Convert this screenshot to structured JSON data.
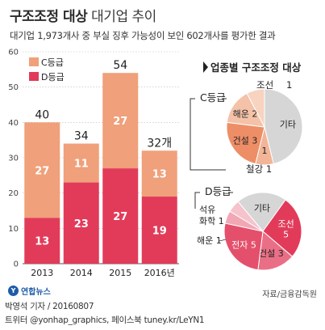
{
  "header": {
    "title_bold": "구조조정 대상",
    "title_rest": "대기업 추이",
    "subtitle": "대기업 1,973개사 중 부실 징후 가능성이 보인 602개사를 평가한 결과"
  },
  "chart_data": [
    {
      "type": "bar",
      "stacked": true,
      "categories": [
        "2013",
        "2014",
        "2015",
        "2016년"
      ],
      "series": [
        {
          "name": "D등급",
          "values": [
            13,
            23,
            27,
            19
          ],
          "color": "#e23b5a"
        },
        {
          "name": "C등급",
          "values": [
            27,
            11,
            27,
            13
          ],
          "color": "#f0a07a"
        }
      ],
      "totals": [
        "40",
        "34",
        "54",
        "32개"
      ],
      "ylim": [
        0,
        60
      ],
      "yticks": [
        0,
        10,
        20,
        30,
        40,
        50,
        60
      ],
      "legend": "top-left",
      "grid": true
    },
    {
      "type": "pie",
      "heading": "업종별 구조조정 대상",
      "label": "C등급",
      "slices": [
        {
          "label": "기타",
          "display": "기타",
          "value": 6,
          "color": "#d6d6d6"
        },
        {
          "label": "조선 1",
          "display": "1",
          "value": 1,
          "color": "#f2b597"
        },
        {
          "label": "건설 3",
          "display": "건설 3",
          "value": 3,
          "color": "#ee8e67"
        },
        {
          "label": "해운 2",
          "display": "해운 2",
          "value": 2,
          "color": "#f4c2a8"
        },
        {
          "label": "철강 1",
          "display": "",
          "value": 1,
          "color": "#f7d3c0"
        }
      ]
    },
    {
      "type": "pie",
      "label": "D등급",
      "slices": [
        {
          "label": "기타",
          "display": "기타",
          "value": 4,
          "color": "#d6d6d6"
        },
        {
          "label": "조선 5",
          "display": "조선 5",
          "value": 5,
          "color": "#e23b5a"
        },
        {
          "label": "건설 3",
          "display": "건설 3",
          "value": 3,
          "color": "#ea6f86"
        },
        {
          "label": "전자 5",
          "display": "전자 5",
          "value": 5,
          "color": "#e4506b"
        },
        {
          "label": "해운 1",
          "display": "",
          "value": 1,
          "color": "#f2a7b5"
        },
        {
          "label": "석유화학 1",
          "display": "",
          "value": 1,
          "color": "#f6c3cd"
        }
      ]
    }
  ],
  "annotations": {
    "c_side": [
      "조선 1",
      "철강 1"
    ],
    "d_side_1": "석유",
    "d_side_2": "화학 1",
    "d_side_3": "해운 1"
  },
  "footer": {
    "logo": "연합뉴스",
    "source": "자료/금융감독원",
    "credit_line1": "박영석 기자 / 20160807",
    "credit_line2": "트위터 @yonhap_graphics, 페이스북 tuney.kr/LeYN1"
  },
  "colors": {
    "accent": "#e23b5a",
    "c_grade": "#f0a07a",
    "text": "#222222",
    "grid": "#bbbbbb"
  }
}
